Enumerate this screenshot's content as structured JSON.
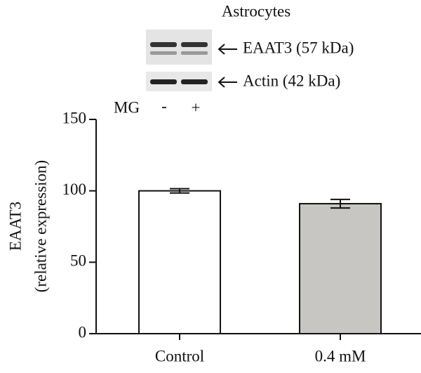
{
  "chart_data": {
    "type": "bar",
    "y_label": [
      "EAAT3",
      "(relative expression)"
    ],
    "categories": [
      "Control",
      "0.4 mM"
    ],
    "values": [
      100,
      91
    ],
    "errors": [
      1.5,
      3
    ],
    "colors": [
      "#ffffff",
      "#c8c6c3"
    ],
    "ylim": [
      0,
      150
    ],
    "yticks": [
      0,
      50,
      100,
      150
    ],
    "blot": {
      "title": "Astrocytes",
      "bands": [
        "EAAT3 (57 kDa)",
        "Actin (42 kDa)"
      ],
      "treatment_label": "MG",
      "lanes": [
        "-",
        "+"
      ]
    }
  }
}
